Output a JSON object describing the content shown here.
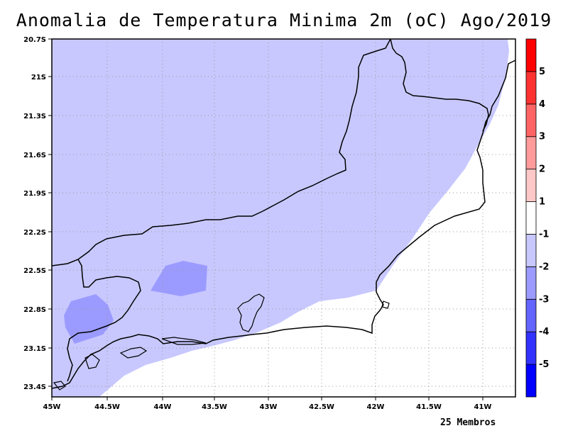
{
  "title": "Anomalia de Temperatura Minima 2m (oC) Ago/2019",
  "footer": "25 Membros",
  "chart_data": {
    "type": "heatmap",
    "title": "Anomalia de Temperatura Minima 2m (oC) Ago/2019",
    "xlim": [
      -45,
      -40.7
    ],
    "ylim": [
      -23.5,
      -20.7
    ],
    "x_ticks": [
      {
        "value": -45.0,
        "label": "45W"
      },
      {
        "value": -44.5,
        "label": "44.5W"
      },
      {
        "value": -44.0,
        "label": "44W"
      },
      {
        "value": -43.5,
        "label": "43.5W"
      },
      {
        "value": -43.0,
        "label": "43W"
      },
      {
        "value": -42.5,
        "label": "42.5W"
      },
      {
        "value": -42.0,
        "label": "42W"
      },
      {
        "value": -41.5,
        "label": "41.5W"
      },
      {
        "value": -41.0,
        "label": "41W"
      }
    ],
    "y_ticks": [
      {
        "value": -20.7,
        "label": "20.7S"
      },
      {
        "value": -21.0,
        "label": "21S"
      },
      {
        "value": -21.3,
        "label": "21.3S"
      },
      {
        "value": -21.6,
        "label": "21.6S"
      },
      {
        "value": -21.9,
        "label": "21.9S"
      },
      {
        "value": -22.2,
        "label": "22.2S"
      },
      {
        "value": -22.5,
        "label": "22.5S"
      },
      {
        "value": -22.8,
        "label": "22.8S"
      },
      {
        "value": -23.1,
        "label": "23.1S"
      },
      {
        "value": -23.4,
        "label": "23.4S"
      }
    ],
    "grid": true,
    "colorbar": {
      "placement": "right",
      "bins": [
        {
          "color": "#0000ff",
          "label": "-5"
        },
        {
          "color": "#3232ff",
          "label": "-4"
        },
        {
          "color": "#6464ff",
          "label": "-3"
        },
        {
          "color": "#9b9bff",
          "label": "-2"
        },
        {
          "color": "#c8c8ff",
          "label": "-1"
        },
        {
          "color": "#ffffff",
          "label": "1"
        },
        {
          "color": "#ffc8c8",
          "label": "2"
        },
        {
          "color": "#ff9b9b",
          "label": "3"
        },
        {
          "color": "#ff6464",
          "label": "4"
        },
        {
          "color": "#ff3232",
          "label": "5"
        },
        {
          "color": "#ff0000",
          "label": ""
        }
      ]
    },
    "regions": [
      {
        "name": "-1 to -2 anomaly region",
        "color": "#c8c8ff",
        "range": [
          -2,
          -1
        ]
      },
      {
        "name": "-2 to -3 anomaly patch (central)",
        "color": "#9b9bff",
        "range": [
          -3,
          -2
        ]
      },
      {
        "name": "-2 to -3 anomaly patch (west)",
        "color": "#9b9bff",
        "range": [
          -3,
          -2
        ]
      },
      {
        "name": "-1 to 1 anomaly region",
        "color": "#ffffff",
        "range": [
          -1,
          1
        ]
      }
    ]
  }
}
